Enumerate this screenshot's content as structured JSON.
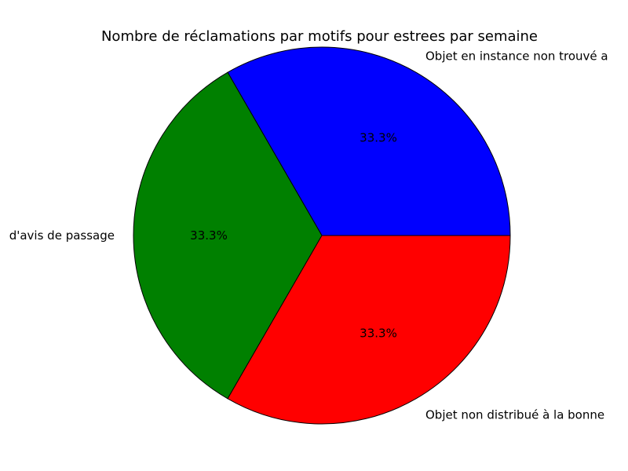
{
  "chart_data": {
    "type": "pie",
    "title": "Nombre de réclamations par motifs pour estrees par semaine",
    "slices": [
      {
        "label": "Objet en instance non trouvé a",
        "value": 1,
        "percent_label": "33.3%",
        "color": "#0000ff"
      },
      {
        "label": "d'avis de passage",
        "value": 1,
        "percent_label": "33.3%",
        "color": "#008000"
      },
      {
        "label": "Objet non distribué à la bonne",
        "value": 1,
        "percent_label": "33.3%",
        "color": "#ff0000"
      }
    ],
    "start_angle": "0 degrees (3 o'clock), counter-clockwise",
    "legend": "none"
  }
}
